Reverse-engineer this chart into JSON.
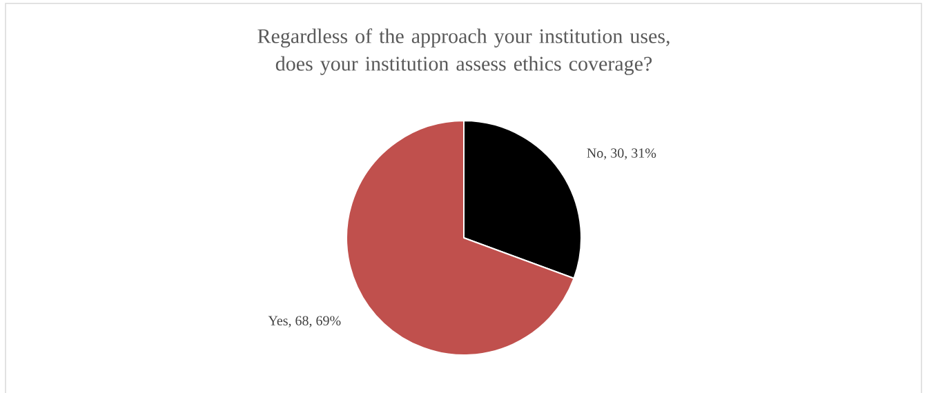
{
  "chart_data": {
    "type": "pie",
    "title": "Regardless of the approach your institution uses, does your institution assess ethics coverage?",
    "categories": [
      "No",
      "Yes"
    ],
    "values": [
      30,
      68
    ],
    "colors": [
      "#000000",
      "#c0504d"
    ],
    "value_labels": [
      ", 30, 31%",
      ", 68, 69%"
    ]
  }
}
